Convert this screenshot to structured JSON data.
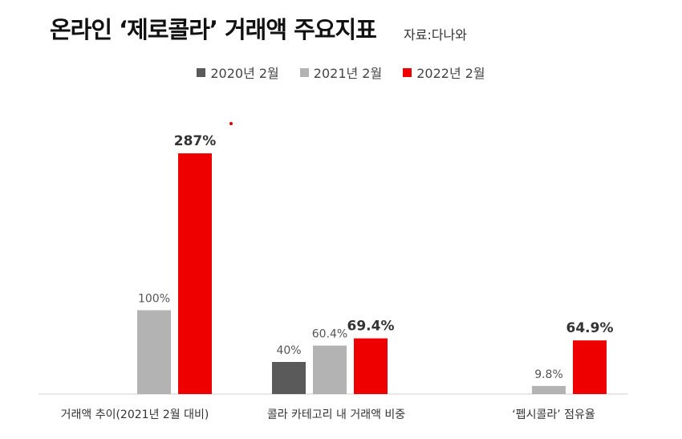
{
  "header": {
    "title": "온라인 ‘제로콜라’ 거래액 주요지표",
    "source": "자료:다나와"
  },
  "colors": {
    "2020": "#5a5a5a",
    "2021": "#b3b3b3",
    "2022": "#ee0000"
  },
  "chart_data": {
    "type": "bar",
    "title": "온라인 ‘제로콜라’ 거래액 주요지표",
    "legend_position": "top",
    "grid": false,
    "categories": [
      "거래액 추이(2021년 2월 대비)",
      "콜라 카테고리 내 거래액 비중",
      "‘펩시콜라’ 점유율"
    ],
    "series": [
      {
        "name": "2020년 2월",
        "color": "#5a5a5a",
        "values": [
          null,
          40,
          null
        ],
        "labels": [
          "",
          "40%",
          ""
        ]
      },
      {
        "name": "2021년 2월",
        "color": "#b3b3b3",
        "values": [
          100,
          60.4,
          9.8
        ],
        "labels": [
          "100%",
          "60.4%",
          "9.8%"
        ]
      },
      {
        "name": "2022년 2월",
        "color": "#ee0000",
        "values": [
          287,
          69.4,
          64.9
        ],
        "labels": [
          "287%",
          "69.4%",
          "64.9%"
        ]
      }
    ]
  }
}
